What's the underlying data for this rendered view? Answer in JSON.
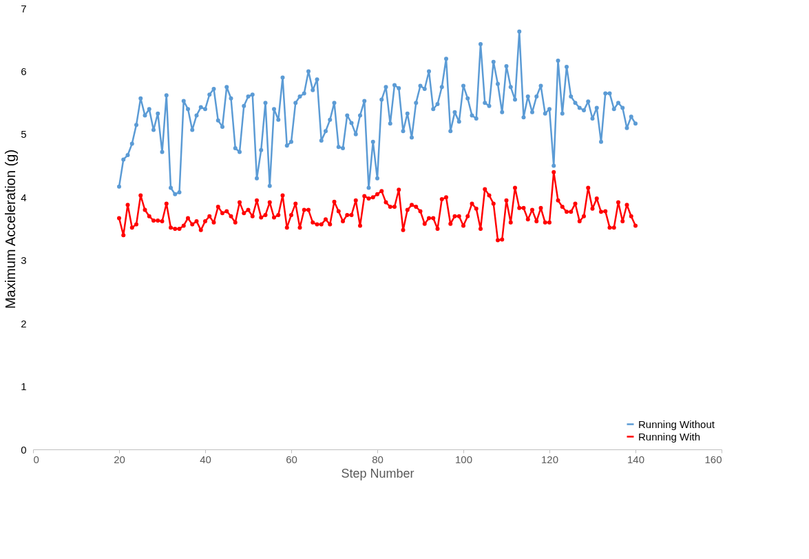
{
  "chart_data": {
    "type": "line",
    "xlabel": "Step Number",
    "ylabel": "Maximum Acceleration (g)",
    "x": [
      20,
      21,
      22,
      23,
      24,
      25,
      26,
      27,
      28,
      29,
      30,
      31,
      32,
      33,
      34,
      35,
      36,
      37,
      38,
      39,
      40,
      41,
      42,
      43,
      44,
      45,
      46,
      47,
      48,
      49,
      50,
      51,
      52,
      53,
      54,
      55,
      56,
      57,
      58,
      59,
      60,
      61,
      62,
      63,
      64,
      65,
      66,
      67,
      68,
      69,
      70,
      71,
      72,
      73,
      74,
      75,
      76,
      77,
      78,
      79,
      80,
      81,
      82,
      83,
      84,
      85,
      86,
      87,
      88,
      89,
      90,
      91,
      92,
      93,
      94,
      95,
      96,
      97,
      98,
      99,
      100,
      101,
      102,
      103,
      104,
      105,
      106,
      107,
      108,
      109,
      110,
      111,
      112,
      113,
      114,
      115,
      116,
      117,
      118,
      119,
      120,
      121,
      122,
      123,
      124,
      125,
      126,
      127,
      128,
      129,
      130,
      131,
      132,
      133,
      134,
      135,
      136,
      137,
      138,
      139,
      140
    ],
    "series": [
      {
        "name": "Running Without",
        "color": "#5b9bd5",
        "values": [
          4.17,
          4.6,
          4.67,
          4.85,
          5.15,
          5.57,
          5.3,
          5.4,
          5.07,
          5.33,
          4.72,
          5.62,
          4.15,
          4.05,
          4.08,
          5.53,
          5.4,
          5.07,
          5.3,
          5.43,
          5.4,
          5.63,
          5.72,
          5.22,
          5.12,
          5.75,
          5.57,
          4.78,
          4.72,
          5.45,
          5.6,
          5.63,
          4.3,
          4.75,
          5.5,
          4.18,
          5.4,
          5.23,
          5.9,
          4.82,
          4.88,
          5.5,
          5.6,
          5.65,
          6.0,
          5.7,
          5.87,
          4.9,
          5.05,
          5.23,
          5.5,
          4.8,
          4.78,
          5.3,
          5.18,
          5.0,
          5.3,
          5.53,
          4.15,
          4.88,
          4.3,
          5.55,
          5.75,
          5.17,
          5.78,
          5.73,
          5.05,
          5.33,
          4.95,
          5.5,
          5.77,
          5.72,
          6.0,
          5.4,
          5.48,
          5.75,
          6.2,
          5.05,
          5.35,
          5.2,
          5.77,
          5.57,
          5.3,
          5.25,
          6.43,
          5.5,
          5.45,
          6.15,
          5.8,
          5.35,
          6.08,
          5.75,
          5.55,
          6.63,
          5.27,
          5.6,
          5.35,
          5.6,
          5.77,
          5.33,
          5.4,
          4.5,
          6.17,
          5.33,
          6.07,
          5.6,
          5.5,
          5.42,
          5.38,
          5.52,
          5.25,
          5.42,
          4.88,
          5.65,
          5.65,
          5.4,
          5.5,
          5.42,
          5.1,
          5.28,
          5.17
        ]
      },
      {
        "name": "Running With",
        "color": "#ff0000",
        "values": [
          3.67,
          3.4,
          3.88,
          3.52,
          3.57,
          4.03,
          3.8,
          3.7,
          3.63,
          3.63,
          3.62,
          3.9,
          3.52,
          3.5,
          3.5,
          3.55,
          3.67,
          3.57,
          3.62,
          3.48,
          3.62,
          3.7,
          3.6,
          3.85,
          3.75,
          3.78,
          3.7,
          3.6,
          3.92,
          3.75,
          3.8,
          3.7,
          3.95,
          3.68,
          3.72,
          3.92,
          3.68,
          3.72,
          4.03,
          3.52,
          3.72,
          3.9,
          3.52,
          3.8,
          3.8,
          3.6,
          3.57,
          3.57,
          3.65,
          3.57,
          3.93,
          3.78,
          3.62,
          3.72,
          3.72,
          3.95,
          3.55,
          4.02,
          3.98,
          4.0,
          4.05,
          4.1,
          3.92,
          3.85,
          3.85,
          4.12,
          3.48,
          3.8,
          3.88,
          3.85,
          3.78,
          3.58,
          3.67,
          3.67,
          3.5,
          3.97,
          4.0,
          3.58,
          3.7,
          3.7,
          3.55,
          3.7,
          3.9,
          3.82,
          3.5,
          4.13,
          4.03,
          3.9,
          3.32,
          3.33,
          3.95,
          3.6,
          4.15,
          3.83,
          3.83,
          3.65,
          3.8,
          3.62,
          3.83,
          3.6,
          3.6,
          4.4,
          3.95,
          3.85,
          3.77,
          3.77,
          3.9,
          3.62,
          3.7,
          4.15,
          3.82,
          3.98,
          3.77,
          3.78,
          3.52,
          3.52,
          3.92,
          3.62,
          3.88,
          3.7,
          3.55
        ]
      }
    ],
    "xlim": [
      0,
      160
    ],
    "xticks": [
      0,
      20,
      40,
      60,
      80,
      100,
      120,
      140,
      160
    ],
    "ylim": [
      0,
      7
    ],
    "yticks": [
      0,
      1,
      2,
      3,
      4,
      5,
      6,
      7
    ],
    "grid": false,
    "legend": "bottom right",
    "marker": "circle",
    "line_style": "solid"
  }
}
